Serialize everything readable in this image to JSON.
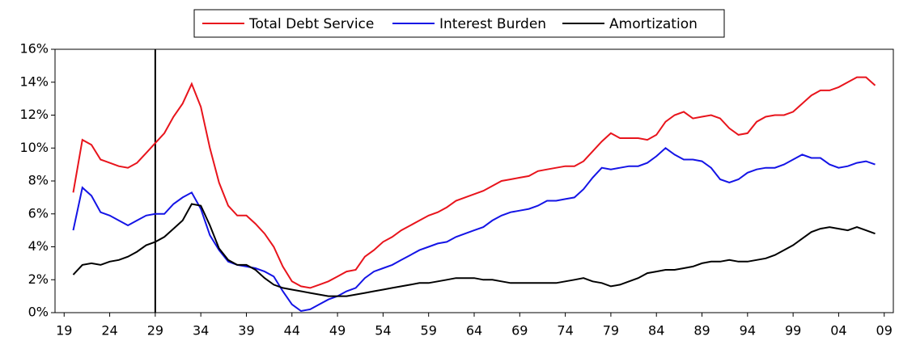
{
  "chart_data": {
    "type": "line",
    "x": [
      1920,
      1921,
      1922,
      1923,
      1924,
      1925,
      1926,
      1927,
      1928,
      1929,
      1930,
      1931,
      1932,
      1933,
      1934,
      1935,
      1936,
      1937,
      1938,
      1939,
      1940,
      1941,
      1942,
      1943,
      1944,
      1945,
      1946,
      1947,
      1948,
      1949,
      1950,
      1951,
      1952,
      1953,
      1954,
      1955,
      1956,
      1957,
      1958,
      1959,
      1960,
      1961,
      1962,
      1963,
      1964,
      1965,
      1966,
      1967,
      1968,
      1969,
      1970,
      1971,
      1972,
      1973,
      1974,
      1975,
      1976,
      1977,
      1978,
      1979,
      1980,
      1981,
      1982,
      1983,
      1984,
      1985,
      1986,
      1987,
      1988,
      1989,
      1990,
      1991,
      1992,
      1993,
      1994,
      1995,
      1996,
      1997,
      1998,
      1999,
      2000,
      2001,
      2002,
      2003,
      2004,
      2005,
      2006,
      2007,
      2008
    ],
    "series": [
      {
        "name": "Total Debt Service",
        "color": "#e8141c",
        "values": [
          7.3,
          10.5,
          10.2,
          9.3,
          9.1,
          8.9,
          8.8,
          9.1,
          9.7,
          10.3,
          10.9,
          11.9,
          12.7,
          13.9,
          12.5,
          10.0,
          7.9,
          6.5,
          5.9,
          5.9,
          5.4,
          4.8,
          4.0,
          2.8,
          1.9,
          1.6,
          1.5,
          1.7,
          1.9,
          2.2,
          2.5,
          2.6,
          3.4,
          3.8,
          4.3,
          4.6,
          5.0,
          5.3,
          5.6,
          5.9,
          6.1,
          6.4,
          6.8,
          7.0,
          7.2,
          7.4,
          7.7,
          8.0,
          8.1,
          8.2,
          8.3,
          8.6,
          8.7,
          8.8,
          8.9,
          8.9,
          9.2,
          9.8,
          10.4,
          10.9,
          10.6,
          10.6,
          10.6,
          10.5,
          10.8,
          11.6,
          12.0,
          12.2,
          11.8,
          11.9,
          12.0,
          11.8,
          11.2,
          10.8,
          10.9,
          11.6,
          11.9,
          12.0,
          12.0,
          12.2,
          12.7,
          13.2,
          13.5,
          13.5,
          13.7,
          14.0,
          14.3,
          14.3,
          13.8
        ]
      },
      {
        "name": "Interest Burden",
        "color": "#1414e6",
        "values": [
          5.0,
          7.6,
          7.1,
          6.1,
          5.9,
          5.6,
          5.3,
          5.6,
          5.9,
          6.0,
          6.0,
          6.6,
          7.0,
          7.3,
          6.3,
          4.7,
          3.8,
          3.1,
          2.9,
          2.8,
          2.7,
          2.5,
          2.2,
          1.3,
          0.5,
          0.1,
          0.2,
          0.5,
          0.8,
          1.0,
          1.3,
          1.5,
          2.1,
          2.5,
          2.7,
          2.9,
          3.2,
          3.5,
          3.8,
          4.0,
          4.2,
          4.3,
          4.6,
          4.8,
          5.0,
          5.2,
          5.6,
          5.9,
          6.1,
          6.2,
          6.3,
          6.5,
          6.8,
          6.8,
          6.9,
          7.0,
          7.5,
          8.2,
          8.8,
          8.7,
          8.8,
          8.9,
          8.9,
          9.1,
          9.5,
          10.0,
          9.6,
          9.3,
          9.3,
          9.2,
          8.8,
          8.1,
          7.9,
          8.1,
          8.5,
          8.7,
          8.8,
          8.8,
          9.0,
          9.3,
          9.6,
          9.4,
          9.4,
          9.0,
          8.8,
          8.9,
          9.1,
          9.2,
          9.0
        ]
      },
      {
        "name": "Amortization",
        "color": "#000000",
        "values": [
          2.3,
          2.9,
          3.0,
          2.9,
          3.1,
          3.2,
          3.4,
          3.7,
          4.1,
          4.3,
          4.6,
          5.1,
          5.6,
          6.6,
          6.5,
          5.3,
          3.9,
          3.2,
          2.9,
          2.9,
          2.6,
          2.1,
          1.7,
          1.5,
          1.4,
          1.3,
          1.2,
          1.1,
          1.0,
          1.0,
          1.0,
          1.1,
          1.2,
          1.3,
          1.4,
          1.5,
          1.6,
          1.7,
          1.8,
          1.8,
          1.9,
          2.0,
          2.1,
          2.1,
          2.1,
          2.0,
          2.0,
          1.9,
          1.8,
          1.8,
          1.8,
          1.8,
          1.8,
          1.8,
          1.9,
          2.0,
          2.1,
          1.9,
          1.8,
          1.6,
          1.7,
          1.9,
          2.1,
          2.4,
          2.5,
          2.6,
          2.6,
          2.7,
          2.8,
          3.0,
          3.1,
          3.1,
          3.2,
          3.1,
          3.1,
          3.2,
          3.3,
          3.5,
          3.8,
          4.1,
          4.5,
          4.9,
          5.1,
          5.2,
          5.1,
          5.0,
          5.2,
          5.0,
          4.8
        ]
      }
    ],
    "xlim": [
      1918,
      2010
    ],
    "xticks": [
      {
        "value": 1919,
        "label": "19"
      },
      {
        "value": 1924,
        "label": "24"
      },
      {
        "value": 1929,
        "label": "29"
      },
      {
        "value": 1934,
        "label": "34"
      },
      {
        "value": 1939,
        "label": "39"
      },
      {
        "value": 1944,
        "label": "44"
      },
      {
        "value": 1949,
        "label": "49"
      },
      {
        "value": 1954,
        "label": "54"
      },
      {
        "value": 1959,
        "label": "59"
      },
      {
        "value": 1964,
        "label": "64"
      },
      {
        "value": 1969,
        "label": "69"
      },
      {
        "value": 1974,
        "label": "74"
      },
      {
        "value": 1979,
        "label": "79"
      },
      {
        "value": 1984,
        "label": "84"
      },
      {
        "value": 1989,
        "label": "89"
      },
      {
        "value": 1994,
        "label": "94"
      },
      {
        "value": 1999,
        "label": "99"
      },
      {
        "value": 2004,
        "label": "04"
      },
      {
        "value": 2009,
        "label": "09"
      }
    ],
    "ylim": [
      0,
      16
    ],
    "yticks": [
      {
        "value": 0,
        "label": "0%"
      },
      {
        "value": 2,
        "label": "2%"
      },
      {
        "value": 4,
        "label": "4%"
      },
      {
        "value": 6,
        "label": "6%"
      },
      {
        "value": 8,
        "label": "8%"
      },
      {
        "value": 10,
        "label": "10%"
      },
      {
        "value": 12,
        "label": "12%"
      },
      {
        "value": 14,
        "label": "14%"
      },
      {
        "value": 16,
        "label": "16%"
      }
    ],
    "vline": 1929,
    "legend": "top"
  }
}
